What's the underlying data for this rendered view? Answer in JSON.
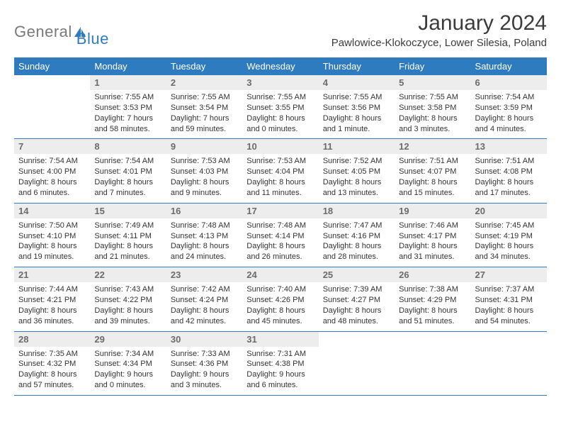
{
  "brand": {
    "part1": "General",
    "part2": "Blue"
  },
  "title": "January 2024",
  "location": "Pawlowice-Klokoczyce, Lower Silesia, Poland",
  "colors": {
    "header_bg": "#2f7bbf",
    "header_text": "#ffffff",
    "daynum_bg": "#ededed",
    "daynum_text": "#6b6b6b",
    "body_text": "#333333",
    "rule": "#2f7bbf",
    "logo_gray": "#7a7a7a",
    "logo_blue": "#2f7bbf",
    "page_bg": "#ffffff"
  },
  "typography": {
    "title_fontsize": 30,
    "location_fontsize": 15,
    "header_fontsize": 13,
    "daynum_fontsize": 13,
    "info_fontsize": 11
  },
  "weekdays": [
    "Sunday",
    "Monday",
    "Tuesday",
    "Wednesday",
    "Thursday",
    "Friday",
    "Saturday"
  ],
  "weeks": [
    [
      null,
      {
        "d": "1",
        "sr": "Sunrise: 7:55 AM",
        "ss": "Sunset: 3:53 PM",
        "dl": "Daylight: 7 hours and 58 minutes."
      },
      {
        "d": "2",
        "sr": "Sunrise: 7:55 AM",
        "ss": "Sunset: 3:54 PM",
        "dl": "Daylight: 7 hours and 59 minutes."
      },
      {
        "d": "3",
        "sr": "Sunrise: 7:55 AM",
        "ss": "Sunset: 3:55 PM",
        "dl": "Daylight: 8 hours and 0 minutes."
      },
      {
        "d": "4",
        "sr": "Sunrise: 7:55 AM",
        "ss": "Sunset: 3:56 PM",
        "dl": "Daylight: 8 hours and 1 minute."
      },
      {
        "d": "5",
        "sr": "Sunrise: 7:55 AM",
        "ss": "Sunset: 3:58 PM",
        "dl": "Daylight: 8 hours and 3 minutes."
      },
      {
        "d": "6",
        "sr": "Sunrise: 7:54 AM",
        "ss": "Sunset: 3:59 PM",
        "dl": "Daylight: 8 hours and 4 minutes."
      }
    ],
    [
      {
        "d": "7",
        "sr": "Sunrise: 7:54 AM",
        "ss": "Sunset: 4:00 PM",
        "dl": "Daylight: 8 hours and 6 minutes."
      },
      {
        "d": "8",
        "sr": "Sunrise: 7:54 AM",
        "ss": "Sunset: 4:01 PM",
        "dl": "Daylight: 8 hours and 7 minutes."
      },
      {
        "d": "9",
        "sr": "Sunrise: 7:53 AM",
        "ss": "Sunset: 4:03 PM",
        "dl": "Daylight: 8 hours and 9 minutes."
      },
      {
        "d": "10",
        "sr": "Sunrise: 7:53 AM",
        "ss": "Sunset: 4:04 PM",
        "dl": "Daylight: 8 hours and 11 minutes."
      },
      {
        "d": "11",
        "sr": "Sunrise: 7:52 AM",
        "ss": "Sunset: 4:05 PM",
        "dl": "Daylight: 8 hours and 13 minutes."
      },
      {
        "d": "12",
        "sr": "Sunrise: 7:51 AM",
        "ss": "Sunset: 4:07 PM",
        "dl": "Daylight: 8 hours and 15 minutes."
      },
      {
        "d": "13",
        "sr": "Sunrise: 7:51 AM",
        "ss": "Sunset: 4:08 PM",
        "dl": "Daylight: 8 hours and 17 minutes."
      }
    ],
    [
      {
        "d": "14",
        "sr": "Sunrise: 7:50 AM",
        "ss": "Sunset: 4:10 PM",
        "dl": "Daylight: 8 hours and 19 minutes."
      },
      {
        "d": "15",
        "sr": "Sunrise: 7:49 AM",
        "ss": "Sunset: 4:11 PM",
        "dl": "Daylight: 8 hours and 21 minutes."
      },
      {
        "d": "16",
        "sr": "Sunrise: 7:48 AM",
        "ss": "Sunset: 4:13 PM",
        "dl": "Daylight: 8 hours and 24 minutes."
      },
      {
        "d": "17",
        "sr": "Sunrise: 7:48 AM",
        "ss": "Sunset: 4:14 PM",
        "dl": "Daylight: 8 hours and 26 minutes."
      },
      {
        "d": "18",
        "sr": "Sunrise: 7:47 AM",
        "ss": "Sunset: 4:16 PM",
        "dl": "Daylight: 8 hours and 28 minutes."
      },
      {
        "d": "19",
        "sr": "Sunrise: 7:46 AM",
        "ss": "Sunset: 4:17 PM",
        "dl": "Daylight: 8 hours and 31 minutes."
      },
      {
        "d": "20",
        "sr": "Sunrise: 7:45 AM",
        "ss": "Sunset: 4:19 PM",
        "dl": "Daylight: 8 hours and 34 minutes."
      }
    ],
    [
      {
        "d": "21",
        "sr": "Sunrise: 7:44 AM",
        "ss": "Sunset: 4:21 PM",
        "dl": "Daylight: 8 hours and 36 minutes."
      },
      {
        "d": "22",
        "sr": "Sunrise: 7:43 AM",
        "ss": "Sunset: 4:22 PM",
        "dl": "Daylight: 8 hours and 39 minutes."
      },
      {
        "d": "23",
        "sr": "Sunrise: 7:42 AM",
        "ss": "Sunset: 4:24 PM",
        "dl": "Daylight: 8 hours and 42 minutes."
      },
      {
        "d": "24",
        "sr": "Sunrise: 7:40 AM",
        "ss": "Sunset: 4:26 PM",
        "dl": "Daylight: 8 hours and 45 minutes."
      },
      {
        "d": "25",
        "sr": "Sunrise: 7:39 AM",
        "ss": "Sunset: 4:27 PM",
        "dl": "Daylight: 8 hours and 48 minutes."
      },
      {
        "d": "26",
        "sr": "Sunrise: 7:38 AM",
        "ss": "Sunset: 4:29 PM",
        "dl": "Daylight: 8 hours and 51 minutes."
      },
      {
        "d": "27",
        "sr": "Sunrise: 7:37 AM",
        "ss": "Sunset: 4:31 PM",
        "dl": "Daylight: 8 hours and 54 minutes."
      }
    ],
    [
      {
        "d": "28",
        "sr": "Sunrise: 7:35 AM",
        "ss": "Sunset: 4:32 PM",
        "dl": "Daylight: 8 hours and 57 minutes."
      },
      {
        "d": "29",
        "sr": "Sunrise: 7:34 AM",
        "ss": "Sunset: 4:34 PM",
        "dl": "Daylight: 9 hours and 0 minutes."
      },
      {
        "d": "30",
        "sr": "Sunrise: 7:33 AM",
        "ss": "Sunset: 4:36 PM",
        "dl": "Daylight: 9 hours and 3 minutes."
      },
      {
        "d": "31",
        "sr": "Sunrise: 7:31 AM",
        "ss": "Sunset: 4:38 PM",
        "dl": "Daylight: 9 hours and 6 minutes."
      },
      null,
      null,
      null
    ]
  ]
}
